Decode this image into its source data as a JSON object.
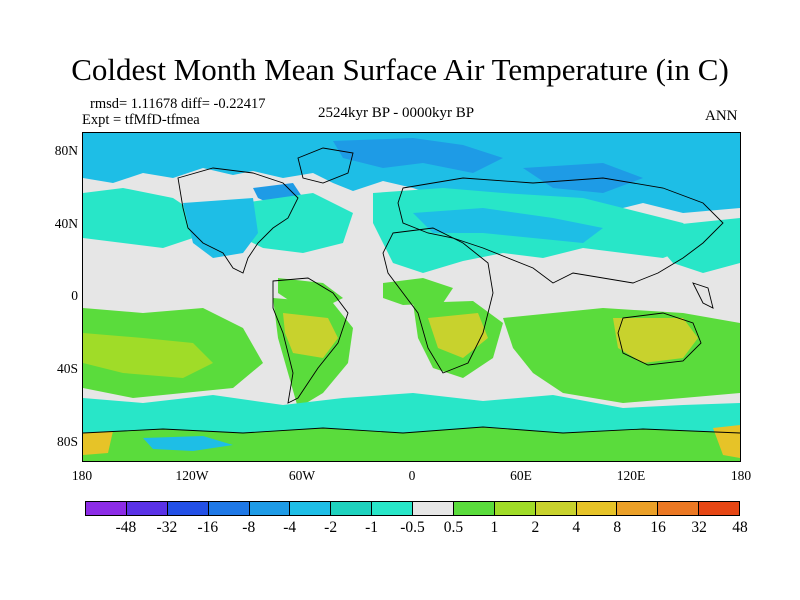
{
  "header": {
    "title": "Coldest Month Mean Surface Air Temperature (in C)",
    "stats": "rmsd= 1.11678 diff= -0.22417",
    "experiment": "Expt = tfMfD-tfmea",
    "period": "2524kyr BP - 0000kyr BP",
    "season": "ANN"
  },
  "map": {
    "lat_labels": [
      "80N",
      "40N",
      "0",
      "40S",
      "80S"
    ],
    "lon_labels": [
      "180",
      "120W",
      "60W",
      "0",
      "60E",
      "120E",
      "180"
    ]
  },
  "colorbar": {
    "colors": [
      "#8c2ce6",
      "#5a32e6",
      "#2350e6",
      "#1e78e6",
      "#1e9be6",
      "#1ebee6",
      "#1ed2be",
      "#28e6c8",
      "#e6e6e6",
      "#5adc3c",
      "#a0dc28",
      "#c8d22d",
      "#e6c328",
      "#eba028",
      "#eb7823",
      "#e64614"
    ],
    "labels": [
      "-48",
      "-32",
      "-16",
      "-8",
      "-4",
      "-2",
      "-1",
      "-0.5",
      "0.5",
      "1",
      "2",
      "4",
      "8",
      "16",
      "32",
      "48"
    ]
  }
}
